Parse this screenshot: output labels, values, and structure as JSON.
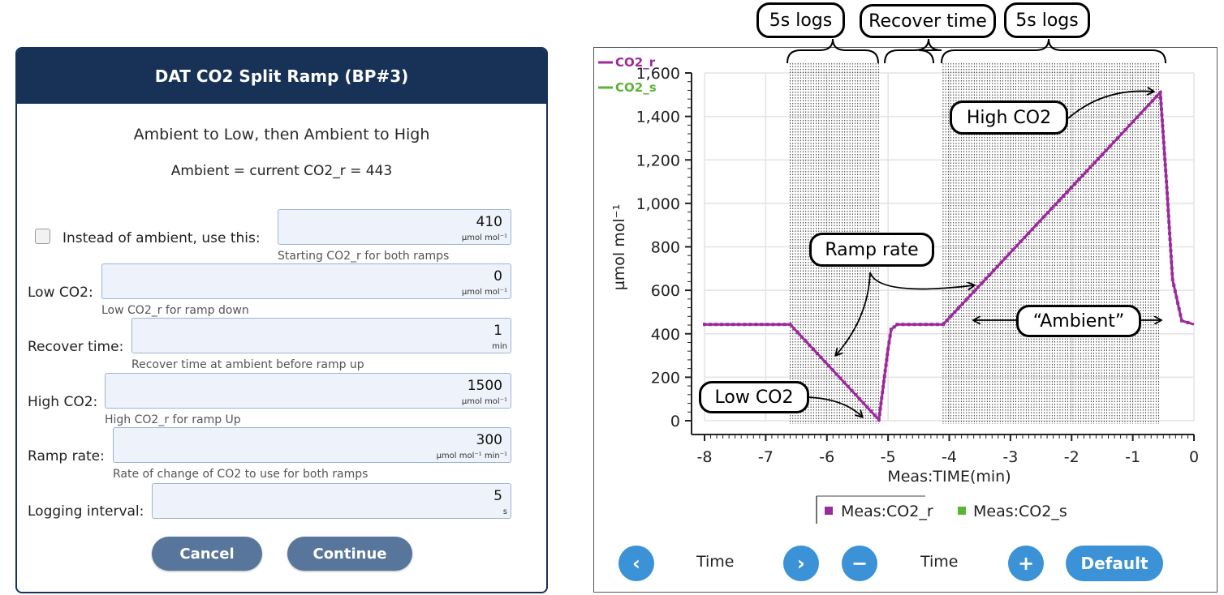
{
  "dialog": {
    "title": "DAT CO2 Split Ramp (BP#3)",
    "subtitle": "Ambient to Low, then Ambient to High",
    "ambient_line": "Ambient = current CO2_r = 443",
    "checkbox": {
      "label": "Instead of ambient, use this:",
      "checked": false,
      "value": "410",
      "unit": "µmol mol⁻¹",
      "hint": "Starting CO2_r for both ramps"
    },
    "low_co2": {
      "label": "Low CO2:",
      "value": "0",
      "unit": "µmol mol⁻¹",
      "hint": "Low CO2_r for ramp down"
    },
    "recover": {
      "label": "Recover time:",
      "value": "1",
      "unit": "min",
      "hint": "Recover time at ambient before ramp up"
    },
    "high_co2": {
      "label": "High CO2:",
      "value": "1500",
      "unit": "µmol mol⁻¹",
      "hint": "High CO2_r for ramp Up"
    },
    "ramp_rate": {
      "label": "Ramp rate:",
      "value": "300",
      "unit": "µmol mol⁻¹ min⁻¹",
      "hint": "Rate of change of CO2 to use for both ramps"
    },
    "logging": {
      "label": "Logging interval:",
      "value": "5",
      "unit": "s"
    },
    "cancel_label": "Cancel",
    "continue_label": "Continue",
    "colors": {
      "header": "#173256",
      "button": "#58769b"
    }
  },
  "chart_data": {
    "type": "scatter",
    "xlabel": "Meas:TIME(min)",
    "ylabel": "µmol mol⁻¹",
    "xlim": [
      -8,
      0
    ],
    "ylim": [
      0,
      1600
    ],
    "x_ticks": [
      "-8",
      "-7",
      "-6",
      "-5",
      "-4",
      "-3",
      "-2",
      "-1",
      "0"
    ],
    "y_ticks": [
      "0",
      "200",
      "400",
      "600",
      "800",
      "1,000",
      "1,200",
      "1,400",
      "1,600"
    ],
    "grid": true,
    "legend_top": [
      "CO2_r",
      "CO2_s"
    ],
    "legend_bottom": [
      "Meas:CO2_r",
      "Meas:CO2_s"
    ],
    "series": [
      {
        "name": "CO2_r",
        "color": "#9b2a9a",
        "points": [
          [
            -8,
            443
          ],
          [
            -6.6,
            443
          ],
          [
            -5.15,
            5
          ],
          [
            -5.0,
            330
          ],
          [
            -4.95,
            420
          ],
          [
            -4.85,
            443
          ],
          [
            -4.1,
            443
          ],
          [
            -0.55,
            1510
          ],
          [
            -0.45,
            1100
          ],
          [
            -0.35,
            650
          ],
          [
            -0.2,
            460
          ],
          [
            0,
            443
          ]
        ]
      },
      {
        "name": "CO2_s",
        "color": "#5cb335",
        "points": []
      }
    ],
    "log_regions_min": [
      [
        -6.6,
        -5.15
      ],
      [
        -4.1,
        -0.55
      ]
    ],
    "annotations": [
      "5s logs",
      "Recover time",
      "5s logs",
      "High CO2",
      "Ramp rate",
      "“Ambient”",
      "Low CO2"
    ]
  },
  "controls": {
    "prev_icon": "chevron-left-icon",
    "next_icon": "chevron-right-icon",
    "minus_icon": "minus-icon",
    "plus_icon": "plus-icon",
    "pan_label": "Time",
    "zoom_label": "Time",
    "default_label": "Default",
    "color": "#3b92d6"
  }
}
